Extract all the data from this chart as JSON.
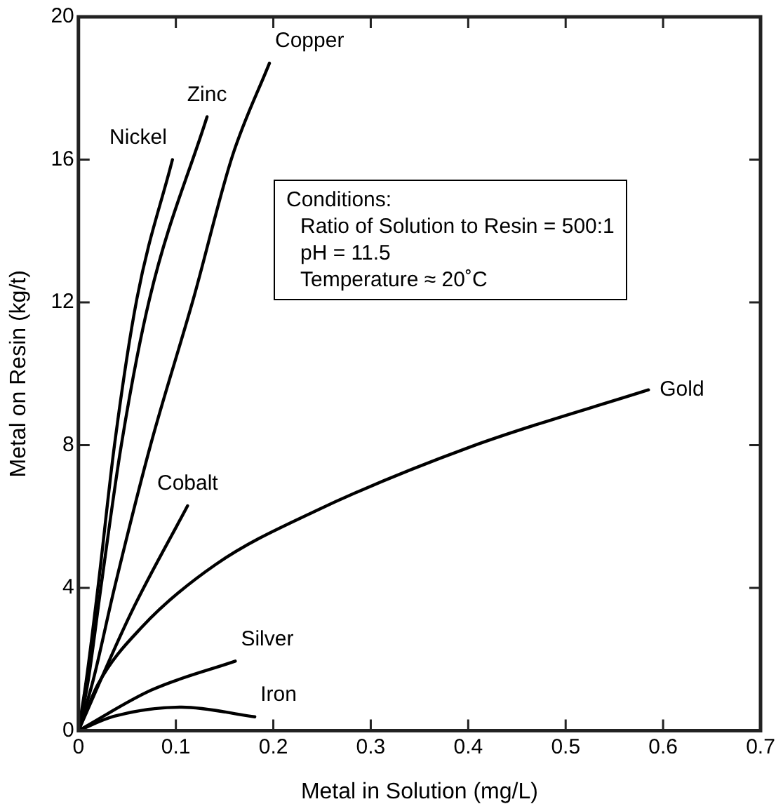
{
  "chart_data": {
    "type": "line",
    "xlabel": "Metal in Solution (mg/L)",
    "ylabel": "Metal on Resin (kg/t)",
    "xlim": [
      0,
      0.7
    ],
    "xticks": [
      0,
      0.1,
      0.2,
      0.3,
      0.4,
      0.5,
      0.6,
      0.7
    ],
    "ylim": [
      0,
      20
    ],
    "yticks": [
      0,
      4,
      8,
      12,
      16,
      20
    ],
    "grid": false,
    "legend": false,
    "marker": "none",
    "line_style": "solid",
    "annotations": [
      "Conditions:",
      "Ratio of Solution to Resin = 500:1",
      "pH = 11.5",
      "Temperature ≈ 20˚C"
    ],
    "series": [
      {
        "name": "Nickel",
        "color": "#000000",
        "x": [
          0,
          0.008,
          0.02,
          0.037,
          0.06,
          0.0965
        ],
        "values": [
          0,
          1.4,
          4,
          8,
          12.1,
          16
        ]
      },
      {
        "name": "Zinc",
        "color": "#000000",
        "x": [
          0,
          0.01,
          0.023,
          0.044,
          0.073,
          0.132
        ],
        "values": [
          0,
          1.4,
          4,
          8,
          12.1,
          17.2
        ]
      },
      {
        "name": "Copper",
        "color": "#000000",
        "x": [
          0,
          0.015,
          0.037,
          0.074,
          0.118,
          0.158,
          0.196
        ],
        "values": [
          0,
          1.4,
          4,
          8,
          12.1,
          16.1,
          18.7
        ]
      },
      {
        "name": "Cobalt",
        "color": "#000000",
        "x": [
          0,
          0.054,
          0.112
        ],
        "values": [
          0,
          3.3,
          6.3
        ]
      },
      {
        "name": "Gold",
        "color": "#000000",
        "x": [
          0,
          0.02,
          0.065,
          0.141,
          0.242,
          0.403,
          0.585
        ],
        "values": [
          0,
          1.3,
          2.9,
          4.66,
          6.14,
          7.96,
          9.55
        ]
      },
      {
        "name": "Silver",
        "color": "#000000",
        "x": [
          0,
          0.075,
          0.161
        ],
        "values": [
          0,
          1.14,
          1.95
        ]
      },
      {
        "name": "Iron",
        "color": "#000000",
        "x": [
          0,
          0.036,
          0.106,
          0.181
        ],
        "values": [
          0,
          0.4,
          0.66,
          0.39
        ]
      }
    ]
  }
}
